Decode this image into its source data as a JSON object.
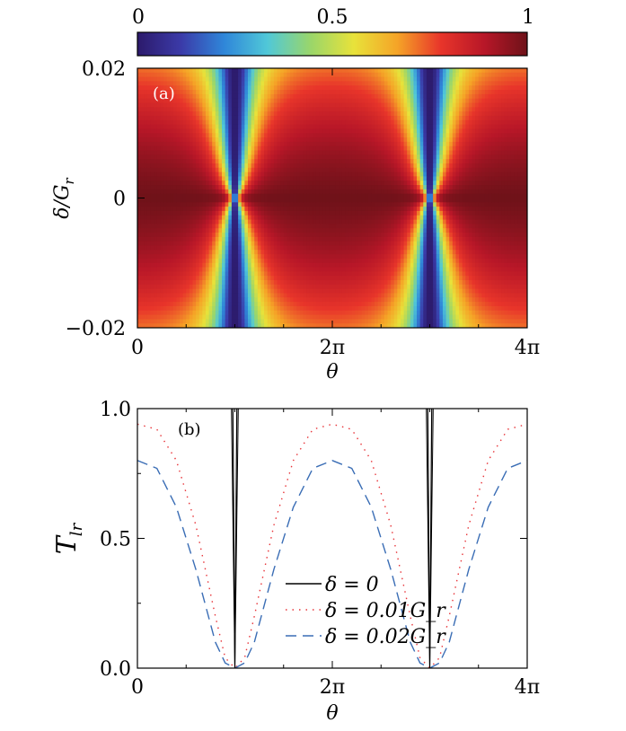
{
  "chart_data": [
    {
      "panel_label": "(a)",
      "type": "heatmap",
      "quantity": "T_lr",
      "colorbar": {
        "ticks": [
          {
            "value": 0,
            "label": "0"
          },
          {
            "value": 0.5,
            "label": "0.5"
          },
          {
            "value": 1,
            "label": "1"
          }
        ],
        "range": [
          0,
          1
        ],
        "colormap": [
          "#2c1a6b",
          "#3b3aa8",
          "#2f86d9",
          "#50c8d8",
          "#9ad66a",
          "#e8e23a",
          "#f5a427",
          "#e8352a",
          "#b81728",
          "#6e1219"
        ]
      },
      "x": {
        "label": "θ",
        "range_pi": [
          0,
          4
        ],
        "ticks": [
          {
            "value_pi": 0,
            "label": "0"
          },
          {
            "value_pi": 2,
            "label": "2π"
          },
          {
            "value_pi": 4,
            "label": "4π"
          }
        ]
      },
      "y": {
        "label": "δ/G_r",
        "range": [
          -0.02,
          0.02
        ],
        "ticks": [
          {
            "value": -0.02,
            "label": "−0.02"
          },
          {
            "value": 0,
            "label": "0"
          },
          {
            "value": 0.02,
            "label": "0.02"
          }
        ]
      },
      "zero_transmission_points": [
        {
          "theta_pi": 1,
          "delta": 0
        },
        {
          "theta_pi": 3,
          "delta": 0
        }
      ]
    },
    {
      "panel_label": "(b)",
      "type": "line",
      "x": {
        "label": "θ",
        "range_pi": [
          0,
          4
        ],
        "ticks": [
          {
            "value_pi": 0,
            "label": "0"
          },
          {
            "value_pi": 2,
            "label": "2π"
          },
          {
            "value_pi": 4,
            "label": "4π"
          }
        ]
      },
      "y": {
        "label": "T_lr",
        "range": [
          0,
          1
        ],
        "ticks": [
          {
            "value": 0,
            "label": "0.0"
          },
          {
            "value": 0.5,
            "label": "0.5"
          },
          {
            "value": 1,
            "label": "1.0"
          }
        ]
      },
      "legend_position": "center",
      "series": [
        {
          "name": "δ = 0",
          "delta": 0,
          "style": "solid",
          "color": "#000000",
          "theta_pi": [
            0.98,
            1.0,
            1.02,
            2.98,
            3.0,
            3.02
          ],
          "T": [
            1.0,
            0.0,
            1.0,
            1.0,
            0.0,
            1.0
          ]
        },
        {
          "name": "δ = 0.01G_r",
          "delta": 0.01,
          "style": "dotted",
          "color": "#e8353a",
          "theta_pi": [
            0.0,
            0.2,
            0.4,
            0.6,
            0.8,
            0.9,
            1.0,
            1.1,
            1.2,
            1.4,
            1.6,
            1.8,
            2.0,
            2.2,
            2.4,
            2.6,
            2.8,
            2.9,
            3.0,
            3.1,
            3.2,
            3.4,
            3.6,
            3.8,
            4.0
          ],
          "T": [
            0.94,
            0.92,
            0.8,
            0.55,
            0.2,
            0.04,
            0.0,
            0.04,
            0.2,
            0.55,
            0.8,
            0.92,
            0.94,
            0.92,
            0.8,
            0.55,
            0.2,
            0.04,
            0.0,
            0.04,
            0.2,
            0.55,
            0.8,
            0.92,
            0.94
          ]
        },
        {
          "name": "δ = 0.02G_r",
          "delta": 0.02,
          "style": "dashed",
          "color": "#3a6db5",
          "theta_pi": [
            0.0,
            0.2,
            0.4,
            0.6,
            0.8,
            0.9,
            1.0,
            1.1,
            1.2,
            1.4,
            1.6,
            1.8,
            2.0,
            2.2,
            2.4,
            2.6,
            2.8,
            2.9,
            3.0,
            3.1,
            3.2,
            3.4,
            3.6,
            3.8,
            4.0
          ],
          "T": [
            0.8,
            0.77,
            0.62,
            0.38,
            0.1,
            0.02,
            0.0,
            0.02,
            0.1,
            0.38,
            0.62,
            0.77,
            0.8,
            0.77,
            0.62,
            0.38,
            0.1,
            0.02,
            0.0,
            0.02,
            0.1,
            0.38,
            0.62,
            0.77,
            0.8
          ]
        }
      ]
    }
  ]
}
